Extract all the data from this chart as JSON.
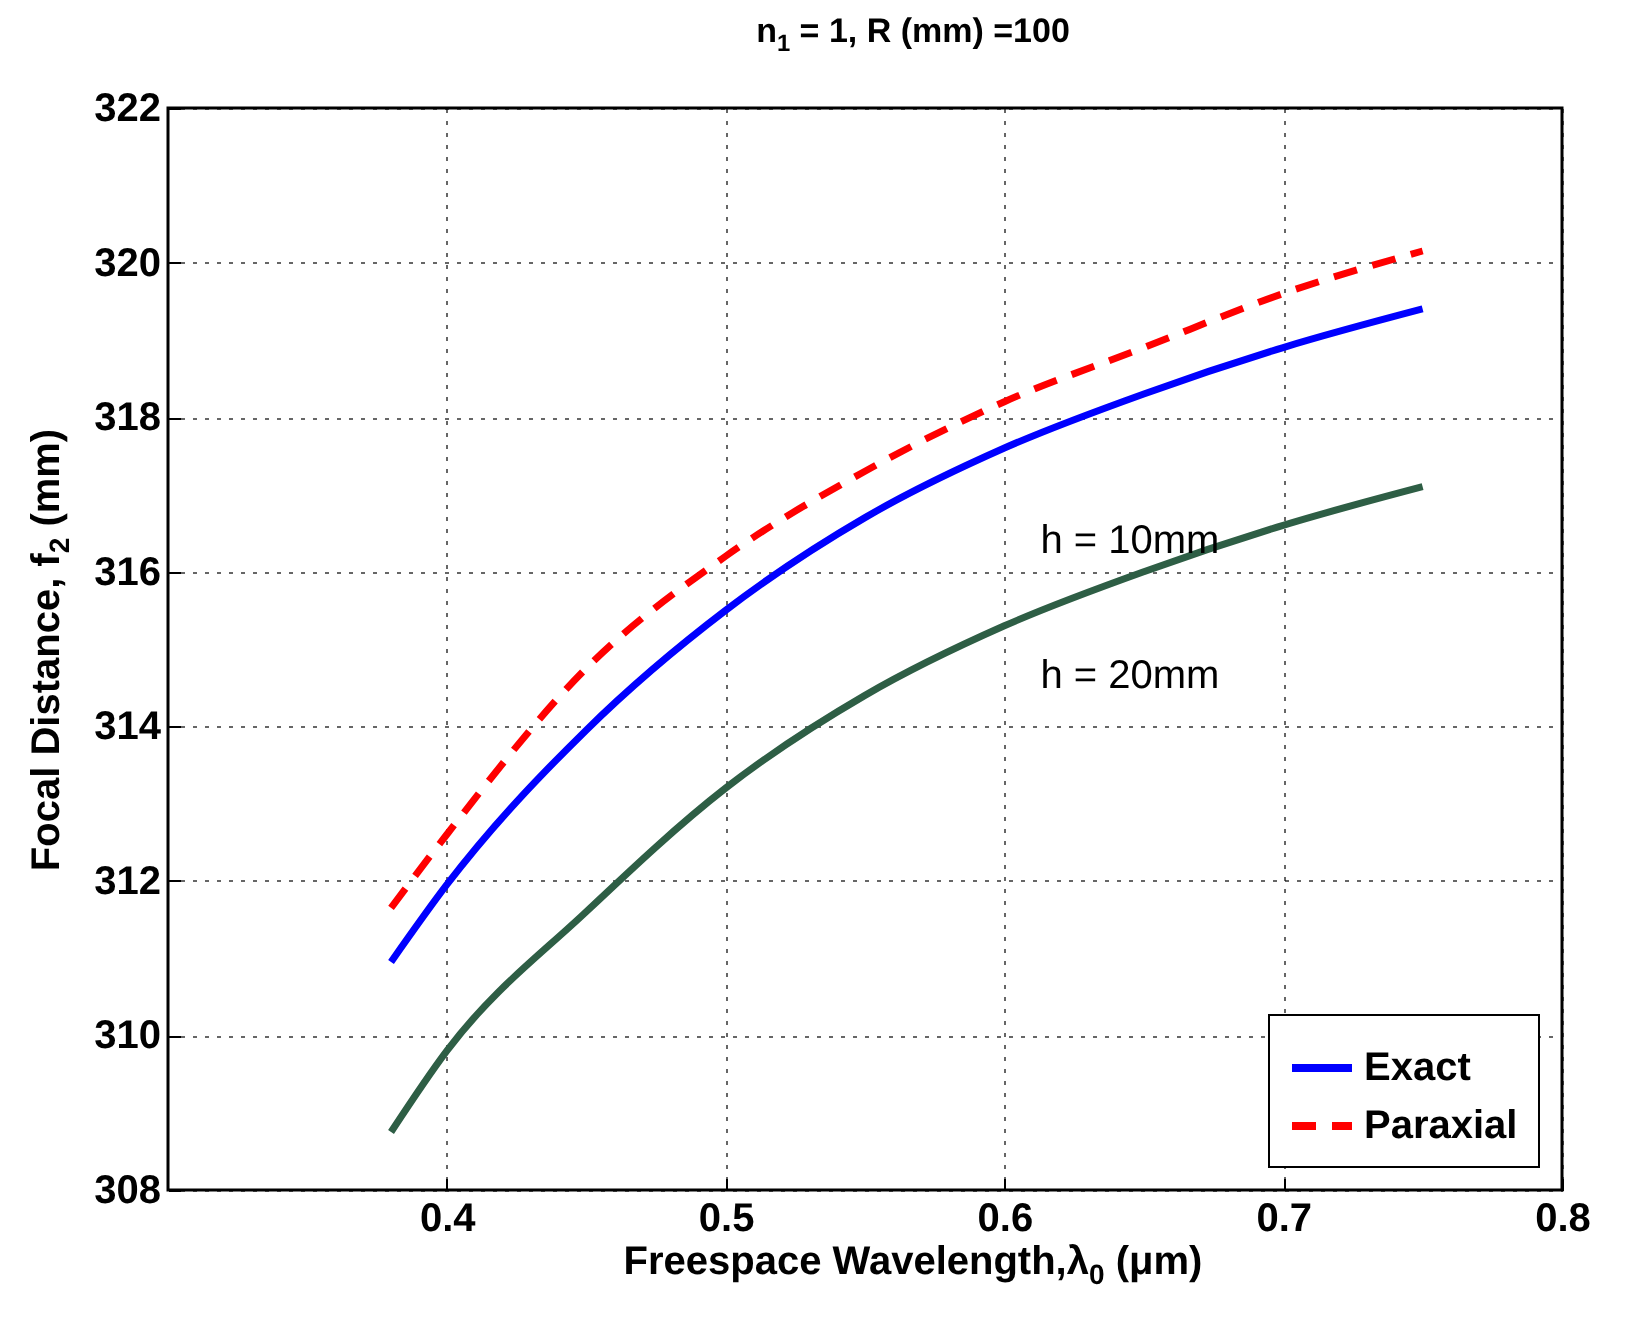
{
  "chart_data": {
    "type": "line",
    "title": "n$_{1}$ = 1, R (mm) =100",
    "xlabel": "Freespace Wavelength,λ$_{0}$ (μm)",
    "ylabel": "Focal Distance, f$_{2}$ (mm)",
    "x": [
      0.38,
      0.4,
      0.45,
      0.5,
      0.55,
      0.6,
      0.65,
      0.7,
      0.75
    ],
    "series": [
      {
        "name": "Exact",
        "color": "#0000ff",
        "line_style": "solid",
        "values": [
          310.95,
          311.95,
          313.95,
          315.5,
          316.7,
          317.6,
          318.3,
          318.9,
          319.4
        ]
      },
      {
        "name": "Paraxial",
        "color": "#ff0000",
        "line_style": "dashed",
        "values": [
          311.65,
          312.6,
          314.75,
          316.2,
          317.3,
          318.2,
          318.9,
          319.6,
          320.15
        ]
      },
      {
        "color": "#2e5e45",
        "line_style": "solid",
        "values": [
          308.75,
          309.8,
          311.6,
          313.2,
          314.4,
          315.3,
          316.0,
          316.6,
          317.1
        ]
      }
    ],
    "annotations": [
      "h = 10mm",
      "h = 20mm"
    ],
    "xlim": [
      0.3,
      0.8
    ],
    "xticks": [
      0.4,
      0.5,
      0.6,
      0.7,
      0.8
    ],
    "ylim": [
      308,
      322
    ],
    "yticks": [
      308,
      310,
      312,
      314,
      316,
      318,
      320,
      322
    ],
    "grid": true,
    "legend": "bottom right"
  }
}
